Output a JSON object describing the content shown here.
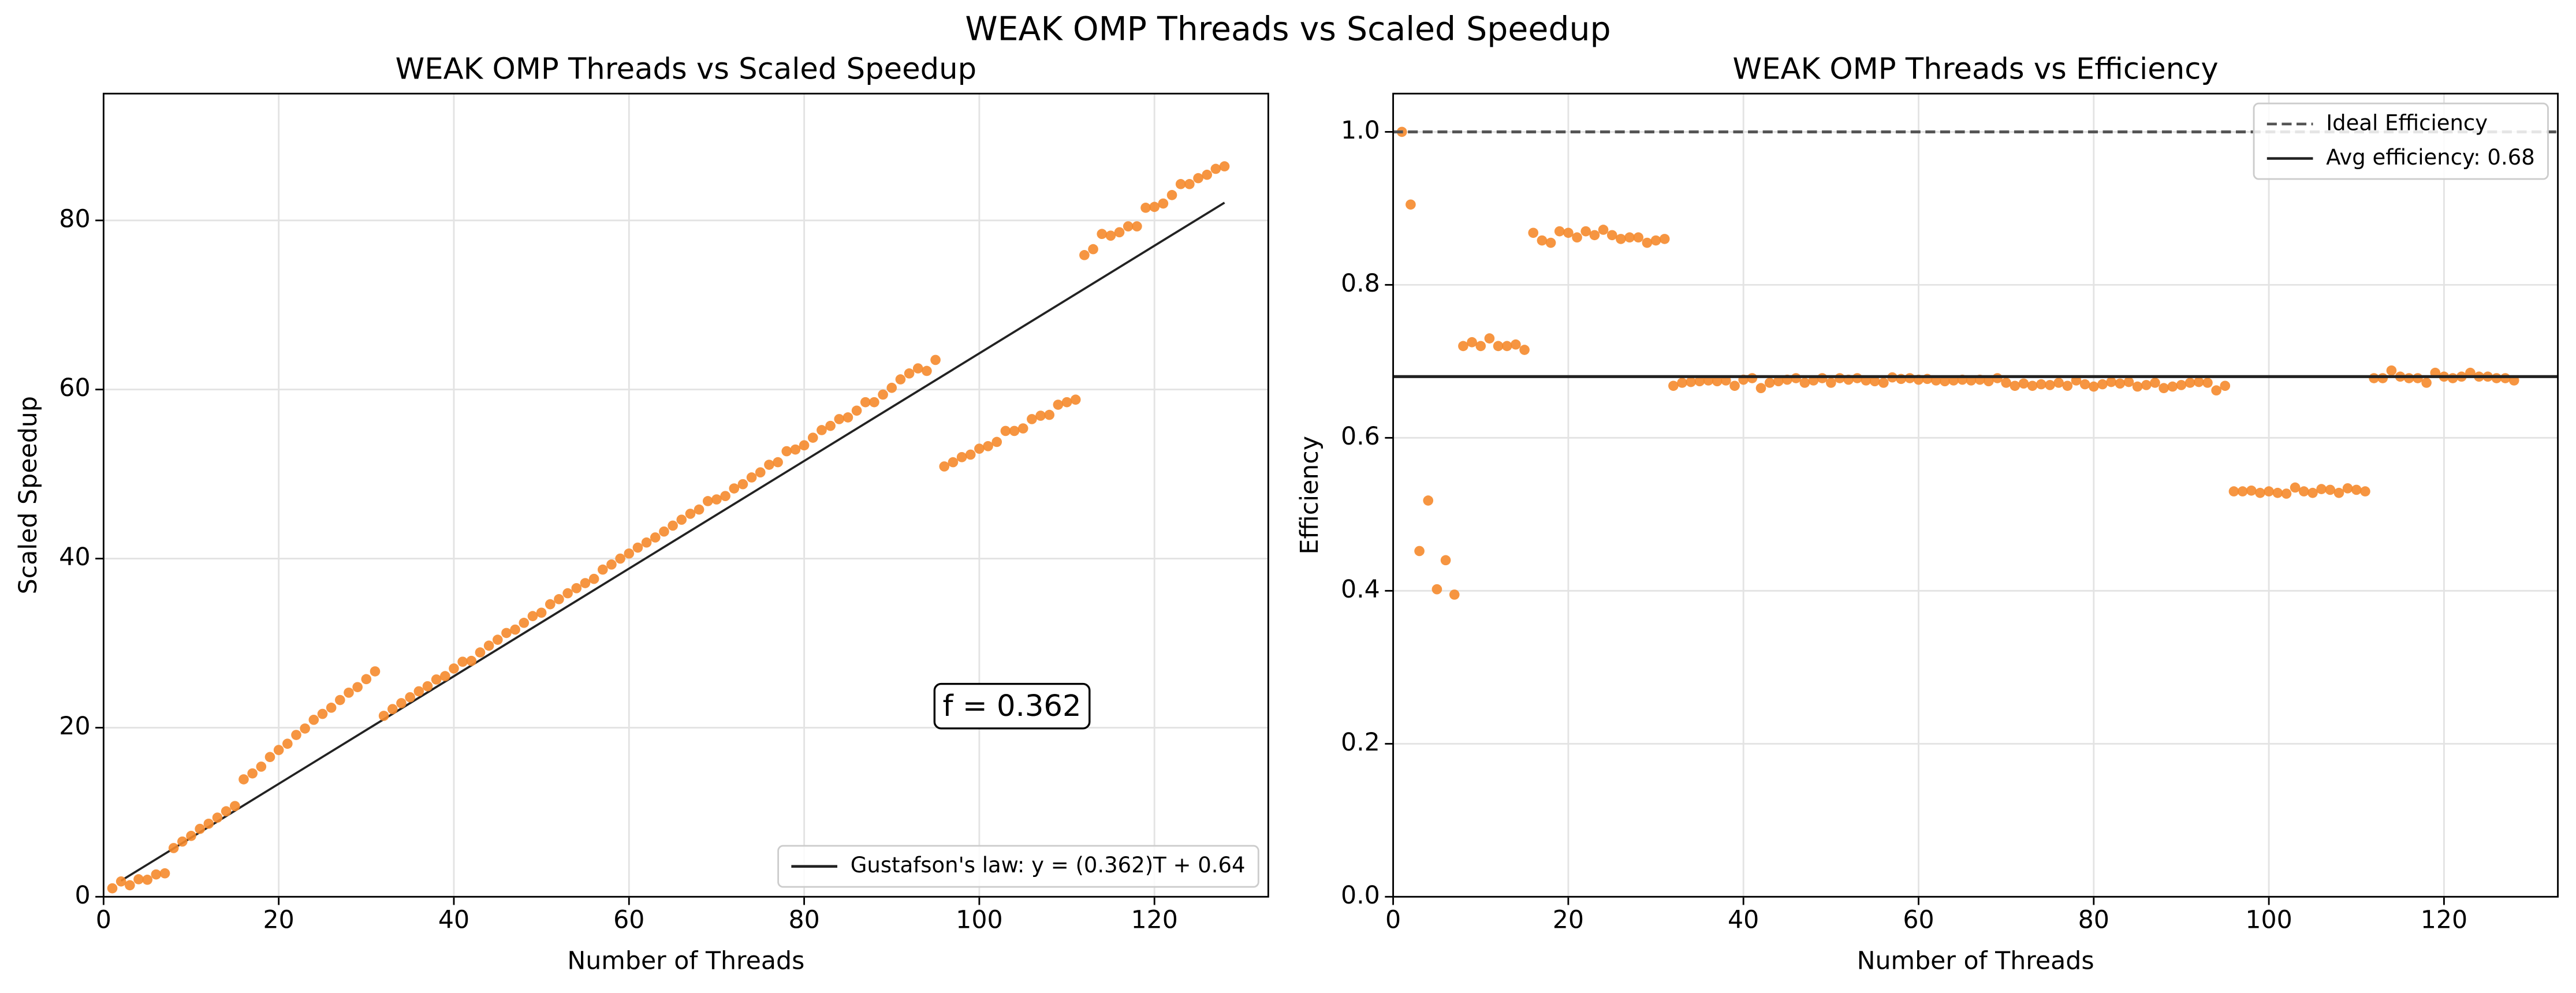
{
  "figure_title": "WEAK OMP Threads vs Scaled Speedup",
  "chart_data": [
    {
      "type": "scatter",
      "title": "WEAK OMP Threads vs Scaled Speedup",
      "xlabel": "Number of Threads",
      "ylabel": "Scaled Speedup",
      "x": [
        1,
        2,
        3,
        4,
        5,
        6,
        7,
        8,
        9,
        10,
        11,
        12,
        13,
        14,
        15,
        16,
        17,
        18,
        19,
        20,
        21,
        22,
        23,
        24,
        25,
        26,
        27,
        28,
        29,
        30,
        31,
        32,
        33,
        34,
        35,
        36,
        37,
        38,
        39,
        40,
        41,
        42,
        43,
        44,
        45,
        46,
        47,
        48,
        49,
        50,
        51,
        52,
        53,
        54,
        55,
        56,
        57,
        58,
        59,
        60,
        61,
        62,
        63,
        64,
        65,
        66,
        67,
        68,
        69,
        70,
        71,
        72,
        73,
        74,
        75,
        76,
        77,
        78,
        79,
        80,
        81,
        82,
        83,
        84,
        85,
        86,
        87,
        88,
        89,
        90,
        91,
        92,
        93,
        94,
        95,
        96,
        97,
        98,
        99,
        100,
        101,
        102,
        103,
        104,
        105,
        106,
        107,
        108,
        109,
        110,
        111,
        112,
        113,
        114,
        115,
        116,
        117,
        118,
        119,
        120,
        121,
        122,
        123,
        124,
        125,
        126,
        127,
        128
      ],
      "series": [
        {
          "color": "#f58a2c",
          "values": [
            1.0,
            1.81,
            1.36,
            2.07,
            2.01,
            2.64,
            2.77,
            5.76,
            6.53,
            7.2,
            8.03,
            8.64,
            9.36,
            10.11,
            10.73,
            13.89,
            14.59,
            15.39,
            16.53,
            17.36,
            18.1,
            19.14,
            19.9,
            20.93,
            21.63,
            22.36,
            23.27,
            24.14,
            24.8,
            25.74,
            26.66,
            21.4,
            22.2,
            22.9,
            23.6,
            24.3,
            24.9,
            25.7,
            26.1,
            27.0,
            27.8,
            27.9,
            28.9,
            29.7,
            30.4,
            31.2,
            31.6,
            32.4,
            33.2,
            33.6,
            34.6,
            35.2,
            35.9,
            36.5,
            37.1,
            37.6,
            38.7,
            39.3,
            40.0,
            40.6,
            41.3,
            41.9,
            42.5,
            43.2,
            43.9,
            44.6,
            45.3,
            45.8,
            46.8,
            47.0,
            47.4,
            48.3,
            48.8,
            49.6,
            50.2,
            51.1,
            51.4,
            52.7,
            52.9,
            53.4,
            54.3,
            55.2,
            55.7,
            56.5,
            56.7,
            57.5,
            58.5,
            58.5,
            59.4,
            60.2,
            61.2,
            61.9,
            62.5,
            62.2,
            63.5,
            50.9,
            51.4,
            52.0,
            52.3,
            53.0,
            53.3,
            53.8,
            55.1,
            55.1,
            55.4,
            56.5,
            56.9,
            57.0,
            58.2,
            58.5,
            58.8,
            75.9,
            76.6,
            78.4,
            78.2,
            78.6,
            79.3,
            79.3,
            81.5,
            81.6,
            82.0,
            83.0,
            84.3,
            84.3,
            85.0,
            85.4,
            86.1,
            86.4
          ]
        }
      ],
      "lines": [
        {
          "name": "Gustafson's law: y = (0.362)T + 0.64",
          "color": "#222222",
          "x": [
            2,
            128
          ],
          "values": [
            1.9,
            82.1
          ]
        }
      ],
      "annotation": "f = 0.362",
      "xlim": [
        0,
        133
      ],
      "ylim": [
        0,
        95
      ],
      "xticks": [
        0,
        20,
        40,
        60,
        80,
        100,
        120
      ],
      "yticks": [
        0,
        20,
        40,
        60,
        80
      ],
      "grid": true,
      "legend": "lower right"
    },
    {
      "type": "scatter",
      "title": "WEAK OMP Threads vs Efficiency",
      "xlabel": "Number of Threads",
      "ylabel": "Efficiency",
      "x": [
        1,
        2,
        3,
        4,
        5,
        6,
        7,
        8,
        9,
        10,
        11,
        12,
        13,
        14,
        15,
        16,
        17,
        18,
        19,
        20,
        21,
        22,
        23,
        24,
        25,
        26,
        27,
        28,
        29,
        30,
        31,
        32,
        33,
        34,
        35,
        36,
        37,
        38,
        39,
        40,
        41,
        42,
        43,
        44,
        45,
        46,
        47,
        48,
        49,
        50,
        51,
        52,
        53,
        54,
        55,
        56,
        57,
        58,
        59,
        60,
        61,
        62,
        63,
        64,
        65,
        66,
        67,
        68,
        69,
        70,
        71,
        72,
        73,
        74,
        75,
        76,
        77,
        78,
        79,
        80,
        81,
        82,
        83,
        84,
        85,
        86,
        87,
        88,
        89,
        90,
        91,
        92,
        93,
        94,
        95,
        96,
        97,
        98,
        99,
        100,
        101,
        102,
        103,
        104,
        105,
        106,
        107,
        108,
        109,
        110,
        111,
        112,
        113,
        114,
        115,
        116,
        117,
        118,
        119,
        120,
        121,
        122,
        123,
        124,
        125,
        126,
        127,
        128
      ],
      "series": [
        {
          "color": "#f58a2c",
          "values": [
            1.0,
            0.905,
            0.452,
            0.518,
            0.402,
            0.44,
            0.395,
            0.72,
            0.725,
            0.72,
            0.73,
            0.72,
            0.72,
            0.722,
            0.715,
            0.868,
            0.858,
            0.855,
            0.87,
            0.868,
            0.862,
            0.87,
            0.865,
            0.872,
            0.865,
            0.86,
            0.862,
            0.862,
            0.855,
            0.858,
            0.86,
            0.668,
            0.672,
            0.673,
            0.674,
            0.675,
            0.674,
            0.675,
            0.668,
            0.676,
            0.678,
            0.665,
            0.672,
            0.674,
            0.676,
            0.678,
            0.672,
            0.675,
            0.678,
            0.672,
            0.678,
            0.676,
            0.678,
            0.675,
            0.674,
            0.672,
            0.679,
            0.677,
            0.678,
            0.676,
            0.677,
            0.675,
            0.674,
            0.675,
            0.676,
            0.675,
            0.676,
            0.674,
            0.678,
            0.672,
            0.668,
            0.671,
            0.668,
            0.67,
            0.669,
            0.672,
            0.668,
            0.675,
            0.67,
            0.667,
            0.67,
            0.673,
            0.671,
            0.673,
            0.667,
            0.669,
            0.672,
            0.665,
            0.667,
            0.669,
            0.672,
            0.673,
            0.672,
            0.662,
            0.668,
            0.53,
            0.53,
            0.531,
            0.528,
            0.53,
            0.528,
            0.527,
            0.535,
            0.53,
            0.528,
            0.533,
            0.532,
            0.528,
            0.534,
            0.532,
            0.53,
            0.678,
            0.678,
            0.688,
            0.68,
            0.678,
            0.678,
            0.672,
            0.685,
            0.68,
            0.678,
            0.68,
            0.685,
            0.68,
            0.68,
            0.678,
            0.678,
            0.675
          ]
        }
      ],
      "hlines": [
        {
          "name": "Ideal Efficiency",
          "value": 1.0,
          "style": "dashed",
          "color": "#555555"
        },
        {
          "name": "Avg efficiency: 0.68",
          "value": 0.68,
          "style": "solid",
          "color": "#222222"
        }
      ],
      "xlim": [
        0,
        133
      ],
      "ylim": [
        0,
        1.05
      ],
      "xticks": [
        0,
        20,
        40,
        60,
        80,
        100,
        120
      ],
      "yticks": [
        {
          "value": 0,
          "label": "0.0"
        },
        0.2,
        0.4,
        0.6,
        0.8,
        {
          "value": 1,
          "label": "1.0"
        }
      ],
      "grid": true,
      "legend": "upper right"
    }
  ]
}
